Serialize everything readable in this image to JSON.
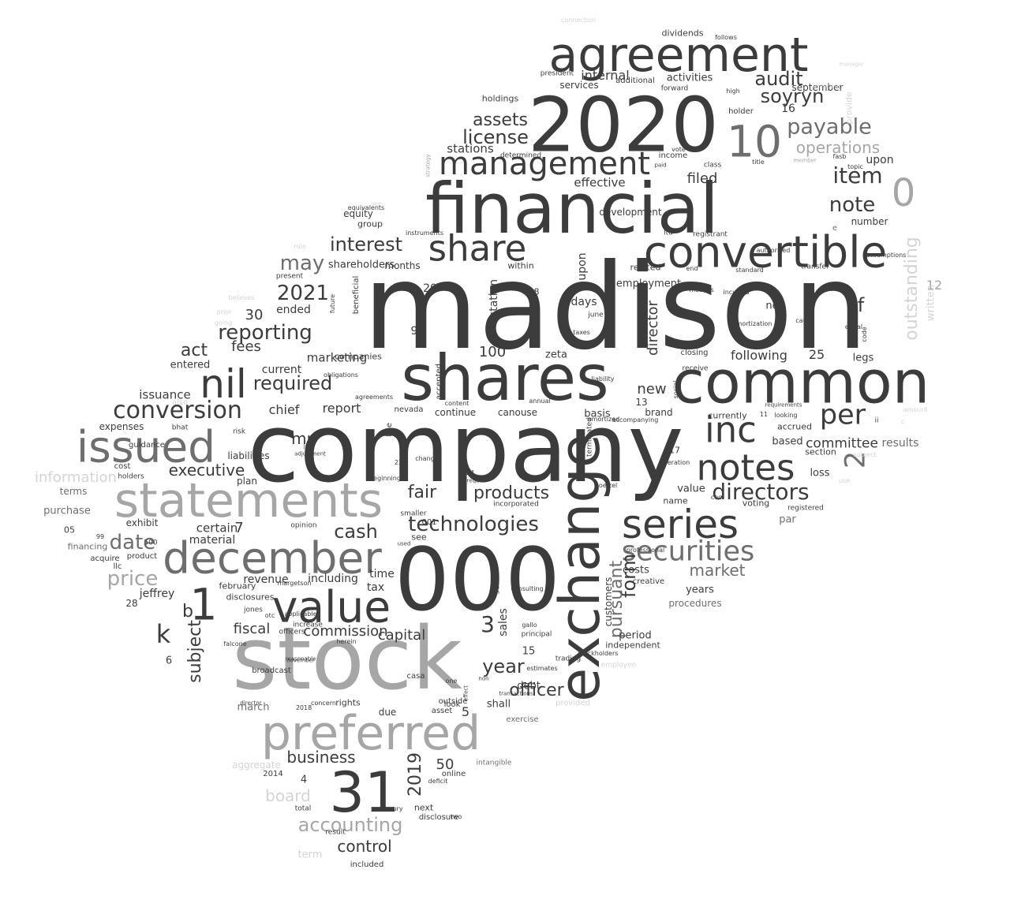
{
  "colors": {
    "dark": "#3c3c3c",
    "mid": "#6e6e6e",
    "light": "#a6a6a6",
    "faint": "#d4d4d4"
  },
  "words": [
    "madison",
    "company",
    "stock",
    "000",
    "financial",
    "2020",
    "shares",
    "common",
    "agreement",
    "convertible",
    "exchange",
    "statements",
    "preferred",
    "december",
    "issued",
    "31",
    "value",
    "series",
    "notes",
    "inc",
    "nil",
    "share",
    "securities",
    "management",
    "1",
    "10",
    "0",
    "conversion",
    "technologies",
    "per",
    "payable",
    "directors",
    "item",
    "note",
    "audit",
    "soyryn",
    "interest",
    "may",
    "reporting",
    "license",
    "assets",
    "required",
    "2021",
    "2",
    "3",
    "date",
    "price",
    "accounting",
    "k",
    "subject",
    "form",
    "pursuant",
    "outstanding",
    "operations",
    "officer",
    "year",
    "products",
    "cash",
    "fair",
    "executive",
    "information",
    "board",
    "business",
    "control",
    "market",
    "committee",
    "following",
    "fiscal",
    "capital",
    "act",
    "2019",
    "f",
    "b",
    "internal",
    "stations",
    "effective",
    "filed",
    "director",
    "new",
    "fees",
    "report",
    "chief",
    "mr",
    "marketing",
    "certain",
    "material",
    "value",
    "financing",
    "terms",
    "purchase",
    "shall",
    "debt",
    "due",
    "march",
    "including",
    "tax",
    "time",
    "see",
    "liabilities",
    "plan",
    "activities",
    "services",
    "additional",
    "president",
    "dividends",
    "september",
    "upon",
    "number",
    "employment",
    "related",
    "development",
    "days",
    "net",
    "legs",
    "shareholders",
    "months",
    "within",
    "zeta",
    "canouse",
    "continue",
    "basis",
    "brand",
    "section",
    "results",
    "based",
    "loss",
    "par",
    "voting",
    "name",
    "costs",
    "years",
    "period",
    "independent",
    "procedures",
    "jeffrey",
    "revenue",
    "february",
    "disclosures",
    "expenses",
    "issuance",
    "entered",
    "current",
    "ended",
    "equity",
    "group",
    "commission",
    "100",
    "50",
    "30",
    "20",
    "25",
    "12",
    "15",
    "16",
    "17",
    "11",
    "13",
    "9",
    "8",
    "7",
    "5",
    "4",
    "asset",
    "online",
    "disclosure",
    "rights",
    "increase",
    "officers",
    "falcone",
    "broadcast",
    "risk",
    "exhibit",
    "product",
    "acquire",
    "llc",
    "cost",
    "holders",
    "closing",
    "currently",
    "accrued",
    "ii",
    "holder",
    "income",
    "paid",
    "holdings",
    "forward",
    "class",
    "june",
    "taxes",
    "station",
    "beneficial",
    "future",
    "changes",
    "look",
    "deficit",
    "two",
    "intangible",
    "exercise",
    "principal",
    "provided",
    "employee",
    "trading",
    "stockholders",
    "hoelzel",
    "creative",
    "customers",
    "professional",
    "amortized",
    "accompanying",
    "ltd",
    "registrant",
    "incurred",
    "transfer",
    "assumptions",
    "written",
    "provide",
    "use",
    "registered",
    "terminated",
    "sales",
    "also",
    "bhat",
    "guidance",
    "believes",
    "going",
    "prior",
    "present",
    "rule",
    "sec",
    "strategy",
    "determined",
    "instruments",
    "applicable",
    "otc",
    "opinion",
    "jones",
    "one",
    "gallo",
    "outside",
    "effect",
    "herein",
    "margetson",
    "aggregate",
    "total",
    "result",
    "included",
    "term",
    "luxury",
    "casa",
    "2018",
    "2014",
    "001",
    "23",
    "24",
    "565",
    "500",
    "99",
    "05",
    "28",
    "6",
    "e",
    "c",
    "amount",
    "subject",
    "american",
    "manager",
    "follows",
    "connection",
    "upon",
    "acquisition",
    "liability",
    "annual",
    "adjustment",
    "july",
    "november",
    "director",
    "reasonable",
    "concern",
    "equivalents",
    "companies",
    "obligations",
    "agreements",
    "content",
    "line",
    "accepted",
    "nevada",
    "beginning",
    "smaller",
    "incorporated",
    "used",
    "require",
    "consulting",
    "estimates",
    "non",
    "transactions",
    "looking",
    "requirements",
    "amortization",
    "cause",
    "code",
    "equal",
    "receive",
    "ceo",
    "social",
    "operation",
    "authorized",
    "end",
    "matters",
    "standard",
    "fasb",
    "topic",
    "title",
    "high",
    "vote",
    "member",
    "next",
    "defined",
    "website",
    "public",
    "compensation",
    "since",
    "conditions",
    "distribution",
    "controls"
  ]
}
